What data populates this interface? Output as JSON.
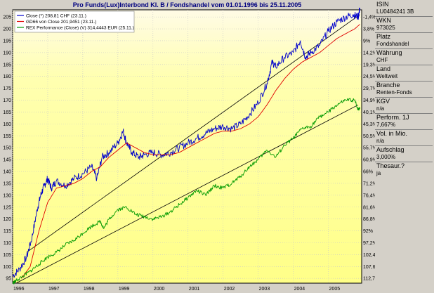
{
  "title": "Pro Funds(Lux)Interbond Kl. B / Fondshandel vom 01.01.1996 bis 25.11.2005",
  "colors": {
    "close": "#0000cc",
    "gd66": "#e00000",
    "rex": "#009900",
    "trend": "#000000",
    "bg_top": "#fffbe8",
    "bg_mid": "#ffff99"
  },
  "legend": [
    {
      "label": "Close (*) 208,81 CHF (23.11.)",
      "color": "#0000cc"
    },
    {
      "label": "GD66 von Close 201,9451 (23.11.)",
      "color": "#e00000"
    },
    {
      "label": "REX Performance (Close) (V) 314,4443 EUR (25.11.)",
      "color": "#009900"
    }
  ],
  "chart_data": {
    "type": "line",
    "x_ticks": [
      "1996",
      "1997",
      "1998",
      "1999",
      "2000",
      "2001",
      "2002",
      "2003",
      "2004",
      "2005"
    ],
    "xlim": [
      1996.0,
      2005.95
    ],
    "ylim_left": [
      93,
      208
    ],
    "yticks_left": [
      95,
      100,
      105,
      110,
      115,
      120,
      125,
      130,
      135,
      140,
      145,
      150,
      155,
      160,
      165,
      170,
      175,
      180,
      185,
      190,
      195,
      200,
      205
    ],
    "yticks_right": [
      "112,7%",
      "107,6%",
      "102,4%",
      "97,2%",
      "92%",
      "86,8%",
      "81,6%",
      "76,4%",
      "71,2%",
      "66%",
      "60,9%",
      "55,7%",
      "50,5%",
      "45,3%",
      "40,1%",
      "34,9%",
      "29,7%",
      "24,5%",
      "19,3%",
      "14,2%",
      "9%",
      "3,8%",
      "-1,4%"
    ],
    "series": [
      {
        "name": "Close (*) 208,81 CHF (23.11.)",
        "points": [
          [
            1996.0,
            96
          ],
          [
            1996.2,
            99
          ],
          [
            1996.4,
            104
          ],
          [
            1996.55,
            112
          ],
          [
            1996.7,
            124
          ],
          [
            1996.8,
            130
          ],
          [
            1996.9,
            134
          ],
          [
            1997.0,
            137
          ],
          [
            1997.1,
            133
          ],
          [
            1997.25,
            136
          ],
          [
            1997.5,
            134
          ],
          [
            1997.75,
            137
          ],
          [
            1998.0,
            139
          ],
          [
            1998.25,
            142
          ],
          [
            1998.4,
            137
          ],
          [
            1998.55,
            146
          ],
          [
            1998.75,
            148
          ],
          [
            1999.0,
            152
          ],
          [
            1999.15,
            157
          ],
          [
            1999.25,
            152
          ],
          [
            1999.4,
            148
          ],
          [
            1999.6,
            146
          ],
          [
            1999.75,
            147
          ],
          [
            2000.0,
            148
          ],
          [
            2000.25,
            147
          ],
          [
            2000.5,
            148
          ],
          [
            2000.75,
            150
          ],
          [
            2001.0,
            152
          ],
          [
            2001.25,
            154
          ],
          [
            2001.5,
            156
          ],
          [
            2001.75,
            158
          ],
          [
            2002.0,
            159
          ],
          [
            2002.25,
            158
          ],
          [
            2002.5,
            160
          ],
          [
            2002.75,
            164
          ],
          [
            2003.0,
            169
          ],
          [
            2003.25,
            177
          ],
          [
            2003.4,
            186
          ],
          [
            2003.5,
            184
          ],
          [
            2003.75,
            188
          ],
          [
            2004.0,
            190
          ],
          [
            2004.2,
            195
          ],
          [
            2004.35,
            188
          ],
          [
            2004.5,
            190
          ],
          [
            2004.75,
            193
          ],
          [
            2005.0,
            199
          ],
          [
            2005.25,
            203
          ],
          [
            2005.5,
            205
          ],
          [
            2005.7,
            206
          ],
          [
            2005.85,
            205
          ],
          [
            2005.9,
            208.8
          ]
        ]
      },
      {
        "name": "GD66 von Close 201,9451 (23.11.)",
        "points": [
          [
            1996.25,
            95
          ],
          [
            1996.5,
            100
          ],
          [
            1996.75,
            115
          ],
          [
            1997.0,
            127
          ],
          [
            1997.25,
            133
          ],
          [
            1997.5,
            134
          ],
          [
            1997.75,
            135
          ],
          [
            1998.0,
            137
          ],
          [
            1998.25,
            140
          ],
          [
            1998.5,
            142
          ],
          [
            1998.75,
            146
          ],
          [
            1999.0,
            149
          ],
          [
            1999.25,
            152
          ],
          [
            1999.5,
            150
          ],
          [
            1999.75,
            148
          ],
          [
            2000.0,
            147
          ],
          [
            2000.25,
            147
          ],
          [
            2000.5,
            147
          ],
          [
            2000.75,
            148
          ],
          [
            2001.0,
            150
          ],
          [
            2001.25,
            152
          ],
          [
            2001.5,
            154
          ],
          [
            2001.75,
            156
          ],
          [
            2002.0,
            157
          ],
          [
            2002.25,
            157
          ],
          [
            2002.5,
            158
          ],
          [
            2002.75,
            160
          ],
          [
            2003.0,
            163
          ],
          [
            2003.25,
            168
          ],
          [
            2003.5,
            174
          ],
          [
            2003.75,
            179
          ],
          [
            2004.0,
            183
          ],
          [
            2004.25,
            186
          ],
          [
            2004.5,
            188
          ],
          [
            2004.75,
            190
          ],
          [
            2005.0,
            193
          ],
          [
            2005.25,
            196
          ],
          [
            2005.5,
            198
          ],
          [
            2005.75,
            200
          ],
          [
            2005.9,
            201.9
          ]
        ]
      },
      {
        "name": "REX Performance (Close) (V) 314,4443 EUR (25.11.)",
        "points": [
          [
            1996.0,
            93
          ],
          [
            1996.1,
            94
          ],
          [
            1996.3,
            96
          ],
          [
            1996.5,
            98
          ],
          [
            1996.75,
            101
          ],
          [
            1997.0,
            104
          ],
          [
            1997.25,
            106
          ],
          [
            1997.5,
            109
          ],
          [
            1997.75,
            111
          ],
          [
            1998.0,
            114
          ],
          [
            1998.25,
            117
          ],
          [
            1998.5,
            119
          ],
          [
            1998.6,
            116
          ],
          [
            1998.75,
            120
          ],
          [
            1999.0,
            124
          ],
          [
            1999.25,
            125
          ],
          [
            1999.5,
            122
          ],
          [
            1999.75,
            121
          ],
          [
            2000.0,
            120
          ],
          [
            2000.25,
            121
          ],
          [
            2000.5,
            123
          ],
          [
            2000.75,
            126
          ],
          [
            2001.0,
            129
          ],
          [
            2001.25,
            132
          ],
          [
            2001.5,
            130
          ],
          [
            2001.75,
            134
          ],
          [
            2002.0,
            133
          ],
          [
            2002.25,
            135
          ],
          [
            2002.5,
            138
          ],
          [
            2002.75,
            142
          ],
          [
            2003.0,
            145
          ],
          [
            2003.25,
            149
          ],
          [
            2003.5,
            146
          ],
          [
            2003.75,
            151
          ],
          [
            2004.0,
            154
          ],
          [
            2004.25,
            158
          ],
          [
            2004.5,
            159
          ],
          [
            2004.75,
            163
          ],
          [
            2005.0,
            165
          ],
          [
            2005.25,
            168
          ],
          [
            2005.5,
            170
          ],
          [
            2005.75,
            170
          ],
          [
            2005.85,
            166
          ],
          [
            2005.9,
            167
          ]
        ]
      }
    ],
    "trendlines": [
      {
        "from": [
          1996.4,
          106
        ],
        "to": [
          2005.9,
          206
        ]
      },
      {
        "from": [
          1996.1,
          93
        ],
        "to": [
          2005.85,
          168
        ]
      }
    ]
  },
  "info": [
    {
      "label": "ISIN",
      "value": "LU0484241 3B"
    },
    {
      "label": "WKN",
      "value": "973025"
    },
    {
      "label": "Platz",
      "value": "Fondshandel"
    },
    {
      "label": "Währung",
      "value": "CHF"
    },
    {
      "label": "Land",
      "value": "Weltweit"
    },
    {
      "label": "Branche",
      "value": "Renten-Fonds"
    },
    {
      "label": "KGV",
      "value": "n/a"
    },
    {
      "label": "Perform. 1J",
      "value": "7,667%"
    },
    {
      "label": "Vol. in Mio.",
      "value": "n/a"
    },
    {
      "label": "Aufschlag",
      "value": "3,000%"
    },
    {
      "label": "Thesaur.?",
      "value": "ja"
    }
  ]
}
